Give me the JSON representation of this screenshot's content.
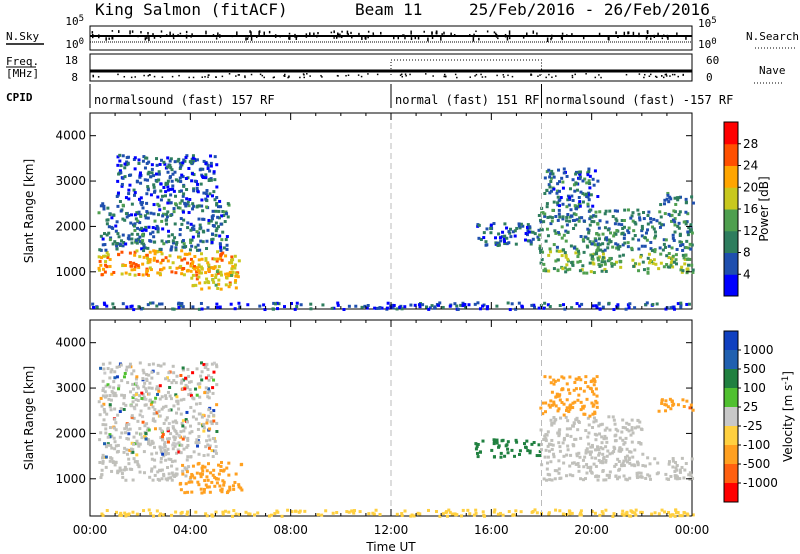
{
  "header": {
    "radar": "King Salmon (fitACF)",
    "beam": "Beam 11",
    "date_range": "25/Feb/2016 - 26/Feb/2016"
  },
  "side_labels": {
    "nsky": "N.Sky",
    "freq_line1": "Freq.",
    "freq_line2": "[MHz]",
    "cpid": "CPID",
    "nsearch": "N.Search",
    "nave": "Nave"
  },
  "noise_ticks_left": [
    "10^5",
    "10^0"
  ],
  "noise_ticks_right": [
    "10^5",
    "10^0"
  ],
  "freq_ticks_left": [
    "18",
    "8"
  ],
  "freq_ticks_right": [
    "60",
    "0"
  ],
  "cpid_segments": [
    {
      "label": "normalsound (fast) 157 RF",
      "start": 0,
      "end": 12
    },
    {
      "label": "normal (fast) 151 RF",
      "start": 12,
      "end": 18
    },
    {
      "label": "normalsound (fast) -157 RF",
      "start": 18,
      "end": 24
    }
  ],
  "colors": {
    "power": [
      "#0000ff",
      "#1f4fae",
      "#2e7d5e",
      "#4f9f4f",
      "#c8c81e",
      "#ffa500",
      "#ff5000",
      "#ff0000"
    ],
    "velocity": [
      "#1040c0",
      "#2060b0",
      "#208040",
      "#50c030",
      "#c8c8c8",
      "#ffd040",
      "#ffa020",
      "#ff6010",
      "#ff0000"
    ],
    "ground_scatter": "#c0c0bb",
    "dashed_line": "#bbbbbb"
  },
  "chart_data": [
    {
      "type": "heatmap",
      "title": "Power",
      "xlabel": "Time UT",
      "ylabel": "Slant Range [km]",
      "x_ticks": [
        "00:00",
        "04:00",
        "08:00",
        "12:00",
        "16:00",
        "20:00",
        "00:00"
      ],
      "y_ticks": [
        1000,
        2000,
        3000,
        4000
      ],
      "xlim_hours": [
        0,
        24
      ],
      "ylim_km": [
        180,
        4500
      ],
      "colorbar_label": "Power [dB]",
      "colorbar_ticks": [
        "4",
        "8",
        "12",
        "16",
        "20",
        "24",
        "28"
      ],
      "colorbar_range": [
        0,
        32
      ],
      "regions": [
        {
          "t": [
            0.3,
            5.9
          ],
          "r": [
            950,
            1500
          ],
          "level": 22
        },
        {
          "t": [
            3.6,
            5.9
          ],
          "r": [
            650,
            1150
          ],
          "level": 20
        },
        {
          "t": [
            0.3,
            5.5
          ],
          "r": [
            1500,
            2600
          ],
          "level": 8
        },
        {
          "t": [
            1.0,
            5.0
          ],
          "r": [
            2600,
            3600
          ],
          "level": 6
        },
        {
          "t": [
            15.3,
            17.9
          ],
          "r": [
            1600,
            2100
          ],
          "level": 7
        },
        {
          "t": [
            17.8,
            24.0
          ],
          "r": [
            1000,
            1500
          ],
          "level": 14
        },
        {
          "t": [
            17.8,
            24.0
          ],
          "r": [
            1500,
            2400
          ],
          "level": 10
        },
        {
          "t": [
            17.9,
            20.2
          ],
          "r": [
            2400,
            3300
          ],
          "level": 8
        },
        {
          "t": [
            22.6,
            24.0
          ],
          "r": [
            2500,
            2800
          ],
          "level": 10
        },
        {
          "t": [
            0.0,
            24.0
          ],
          "r": [
            200,
            350
          ],
          "level": 5
        }
      ]
    },
    {
      "type": "heatmap",
      "title": "Velocity",
      "xlabel": "Time UT",
      "ylabel": "Slant Range [km]",
      "x_ticks": [
        "00:00",
        "04:00",
        "08:00",
        "12:00",
        "16:00",
        "20:00",
        "00:00"
      ],
      "y_ticks": [
        1000,
        2000,
        3000,
        4000
      ],
      "xlim_hours": [
        0,
        24
      ],
      "ylim_km": [
        180,
        4500
      ],
      "colorbar_label": "Velocity [m s^-1]",
      "colorbar_ticks": [
        "1000",
        "500",
        "100",
        "25",
        "-25",
        "-100",
        "-500",
        "-1000"
      ],
      "regions": [
        {
          "t": [
            0.3,
            4.0
          ],
          "r": [
            1000,
            1500
          ],
          "level": "gs"
        },
        {
          "t": [
            3.5,
            6.0
          ],
          "r": [
            700,
            1400
          ],
          "level": -300
        },
        {
          "t": [
            0.3,
            5.0
          ],
          "r": [
            1500,
            3600
          ],
          "level": "mixed"
        },
        {
          "t": [
            15.3,
            17.9
          ],
          "r": [
            1500,
            1900
          ],
          "level": 150
        },
        {
          "t": [
            17.8,
            24.0
          ],
          "r": [
            1000,
            1500
          ],
          "level": "gs"
        },
        {
          "t": [
            17.9,
            22.0
          ],
          "r": [
            1500,
            2400
          ],
          "level": "gs"
        },
        {
          "t": [
            17.9,
            20.2
          ],
          "r": [
            2400,
            3300
          ],
          "level": -150
        },
        {
          "t": [
            22.6,
            24.0
          ],
          "r": [
            2500,
            2800
          ],
          "level": -400
        },
        {
          "t": [
            0.0,
            24.0
          ],
          "r": [
            200,
            350
          ],
          "level": -40
        }
      ]
    }
  ]
}
